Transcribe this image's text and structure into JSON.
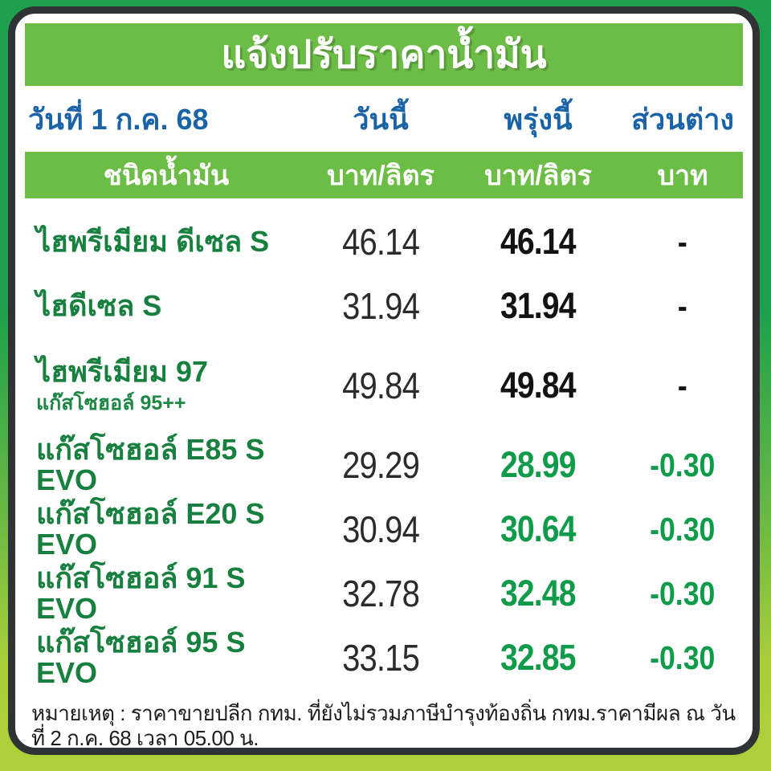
{
  "title": "แจ้งปรับราคาน้ำมัน",
  "date_row": {
    "date": "วันที่ 1 ก.ค. 68",
    "today": "วันนี้",
    "tomorrow": "พรุ่งนี้",
    "diff": "ส่วนต่าง"
  },
  "header_row": {
    "fuel_type": "ชนิดน้ำมัน",
    "today_unit": "บาท/ลิตร",
    "tomorrow_unit": "บาท/ลิตร",
    "diff_unit": "บาท"
  },
  "rows": [
    {
      "name": "ไฮพรีเมียม ดีเซล S",
      "subtitle": "",
      "today": "46.14",
      "tomorrow": "46.14",
      "diff": "-",
      "changed": false
    },
    {
      "name": "ไฮดีเซล S",
      "subtitle": "",
      "today": "31.94",
      "tomorrow": "31.94",
      "diff": "-",
      "changed": false
    },
    {
      "name": "ไฮพรีเมียม 97",
      "subtitle": "แก๊สโซฮอล์ 95++",
      "today": "49.84",
      "tomorrow": "49.84",
      "diff": "-",
      "changed": false
    },
    {
      "name": "แก๊สโซฮอล์ E85 S EVO",
      "subtitle": "",
      "today": "29.29",
      "tomorrow": "28.99",
      "diff": "-0.30",
      "changed": true
    },
    {
      "name": "แก๊สโซฮอล์ E20 S EVO",
      "subtitle": "",
      "today": "30.94",
      "tomorrow": "30.64",
      "diff": "-0.30",
      "changed": true
    },
    {
      "name": "แก๊สโซฮอล์ 91 S EVO",
      "subtitle": "",
      "today": "32.78",
      "tomorrow": "32.48",
      "diff": "-0.30",
      "changed": true
    },
    {
      "name": "แก๊สโซฮอล์ 95 S EVO",
      "subtitle": "",
      "today": "33.15",
      "tomorrow": "32.85",
      "diff": "-0.30",
      "changed": true
    }
  ],
  "note": "หมายเหตุ :  ราคาขายปลีก กทม. ที่ยังไม่รวมภาษีบำรุงท้องถิ่น  กทม.ราคามีผล ณ วันที่ 2 ก.ค. 68 เวลา 05.00 น.",
  "colors": {
    "background_top": "#1da14c",
    "background_bottom": "#aed03a",
    "banner_green": "#6cbd45",
    "border_dark": "#2f3335",
    "header_blue": "#1b63a7",
    "fuel_name_green": "#17803f",
    "changed_green": "#0f9b49",
    "price_black": "#121212"
  }
}
